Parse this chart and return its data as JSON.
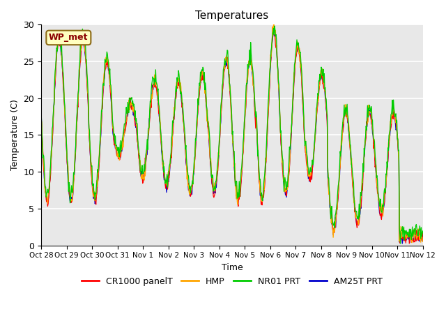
{
  "title": "Temperatures",
  "xlabel": "Time",
  "ylabel": "Temperature (C)",
  "ylim": [
    0,
    30
  ],
  "background_color": "#e8e8e8",
  "fig_background": "#ffffff",
  "legend_label": "WP_met",
  "series_colors": {
    "CR1000 panelT": "#ff0000",
    "HMP": "#ffa500",
    "NR01 PRT": "#00cc00",
    "AM25T PRT": "#0000cc"
  },
  "xtick_labels": [
    "Oct 28",
    "Oct 29",
    "Oct 30",
    "Oct 31",
    "Nov 1",
    "Nov 2",
    "Nov 3",
    "Nov 4",
    "Nov 5",
    "Nov 6",
    "Nov 7",
    "Nov 8",
    "Nov 9",
    "Nov 10",
    "Nov 11",
    "Nov 12"
  ],
  "ytick_labels": [
    "0",
    "5",
    "10",
    "15",
    "20",
    "25",
    "30"
  ],
  "ytick_values": [
    0,
    5,
    10,
    15,
    20,
    25,
    30
  ],
  "day_highs": [
    28,
    28,
    25,
    19,
    22,
    22,
    23,
    25,
    25,
    29,
    27,
    23,
    18,
    18,
    18,
    1
  ],
  "day_lows": [
    6,
    6,
    6,
    12,
    9,
    8,
    7,
    7,
    6,
    6,
    7,
    9,
    2,
    3,
    4,
    1
  ]
}
